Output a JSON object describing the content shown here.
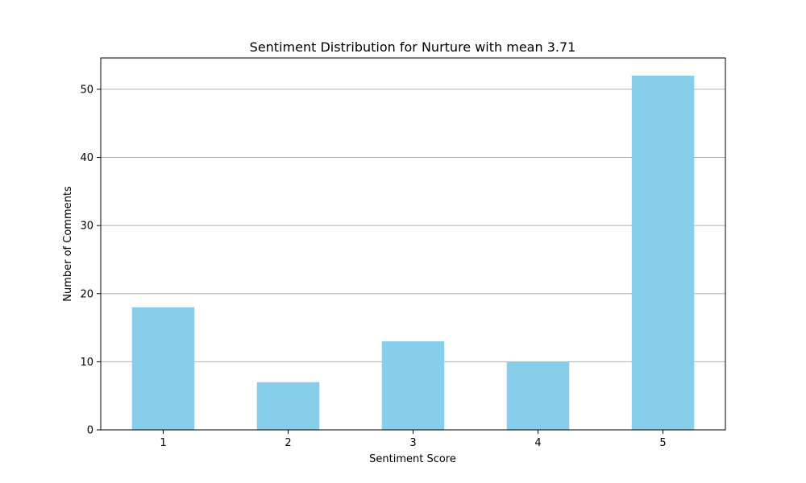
{
  "chart_data": {
    "type": "bar",
    "title": "Sentiment Distribution for Nurture with mean 3.71",
    "xlabel": "Sentiment Score",
    "ylabel": "Number of Comments",
    "categories": [
      "1",
      "2",
      "3",
      "4",
      "5"
    ],
    "values": [
      18,
      7,
      13,
      10,
      52
    ],
    "ylim": [
      0,
      54.6
    ],
    "yticks": [
      0,
      10,
      20,
      30,
      40,
      50
    ],
    "grid": "y",
    "bar_color": "#87CEEB",
    "grid_color": "#b0b0b0"
  }
}
